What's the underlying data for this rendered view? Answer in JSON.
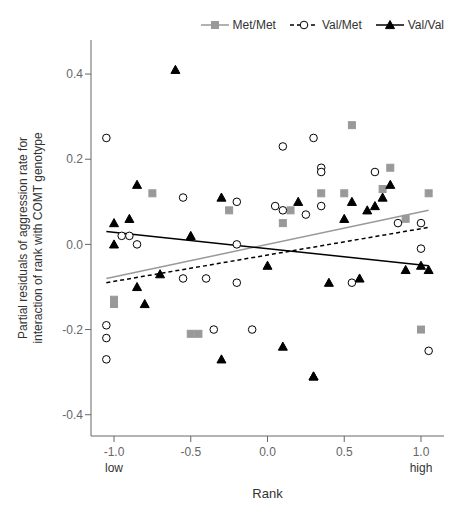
{
  "chart_data": {
    "type": "scatter",
    "xlabel": "Rank",
    "ylabel": "Partial residuals of aggression rate for\ninteraction of rank with COMT genotype",
    "xlim": [
      -1.15,
      1.15
    ],
    "ylim": [
      -0.45,
      0.48
    ],
    "xticks": [
      {
        "value": -1.0,
        "label": "-1.0"
      },
      -0.5,
      {
        "value": 0,
        "label": "0.0"
      },
      0.5,
      {
        "value": 1.0,
        "label": "1.0"
      }
    ],
    "yticks": [
      -0.4,
      -0.2,
      {
        "value": 0,
        "label": "0.0"
      },
      0.2,
      0.4
    ],
    "grid": false,
    "legend": "upper right",
    "annotations": [
      {
        "text": "low",
        "x": -1.0
      },
      {
        "text": "high",
        "x": 1.0
      }
    ],
    "series": [
      {
        "name": "Met/Met",
        "color": "#999999",
        "marker": "square",
        "line_style": "solid",
        "x": [
          -1.0,
          -1.0,
          -0.75,
          -0.5,
          -0.45,
          -0.25,
          0.1,
          0.15,
          0.35,
          0.5,
          0.55,
          0.75,
          0.8,
          0.9,
          1.0,
          1.05
        ],
        "y": [
          -0.13,
          -0.14,
          0.12,
          -0.21,
          -0.21,
          0.08,
          0.05,
          0.08,
          0.12,
          0.12,
          0.28,
          0.13,
          0.18,
          0.06,
          -0.2,
          0.12
        ],
        "line_x": [
          -1.05,
          1.05
        ],
        "line_y": [
          -0.08,
          0.08
        ]
      },
      {
        "name": "Val/Met",
        "color": "#000000",
        "marker": "circle_open",
        "line_style": "dashed",
        "x": [
          -1.05,
          -1.05,
          -1.05,
          -1.05,
          -0.95,
          -0.9,
          -0.85,
          -0.55,
          -0.55,
          -0.4,
          -0.35,
          -0.2,
          -0.2,
          -0.2,
          -0.1,
          0.05,
          0.1,
          0.1,
          0.25,
          0.3,
          0.35,
          0.35,
          0.35,
          0.55,
          0.7,
          0.85,
          1.0,
          1.0,
          1.05
        ],
        "y": [
          0.25,
          -0.19,
          -0.22,
          -0.27,
          0.02,
          0.02,
          0.0,
          0.11,
          -0.08,
          -0.08,
          -0.2,
          0.1,
          0.0,
          -0.09,
          -0.2,
          0.09,
          0.23,
          0.08,
          0.07,
          0.25,
          0.18,
          0.17,
          0.09,
          -0.09,
          0.17,
          0.05,
          -0.01,
          0.05,
          -0.25
        ],
        "line_x": [
          -1.05,
          1.05
        ],
        "line_y": [
          -0.09,
          0.04
        ]
      },
      {
        "name": "Val/Val",
        "color": "#000000",
        "marker": "triangle",
        "line_style": "solid",
        "x": [
          -1.0,
          -1.0,
          -0.9,
          -0.85,
          -0.85,
          -0.8,
          -0.7,
          -0.6,
          -0.5,
          -0.3,
          -0.3,
          0.0,
          0.1,
          0.2,
          0.3,
          0.3,
          0.4,
          0.5,
          0.55,
          0.6,
          0.65,
          0.7,
          0.75,
          0.8,
          0.9,
          1.0,
          1.05
        ],
        "y": [
          0.05,
          0.0,
          0.06,
          0.14,
          -0.1,
          -0.14,
          -0.07,
          0.41,
          0.02,
          0.11,
          -0.27,
          -0.05,
          -0.24,
          0.1,
          -0.31,
          -0.31,
          -0.09,
          0.06,
          0.1,
          -0.08,
          0.08,
          0.09,
          0.11,
          0.14,
          -0.06,
          -0.05,
          -0.06
        ],
        "line_x": [
          -1.05,
          1.05
        ],
        "line_y": [
          0.03,
          -0.05
        ]
      }
    ]
  }
}
